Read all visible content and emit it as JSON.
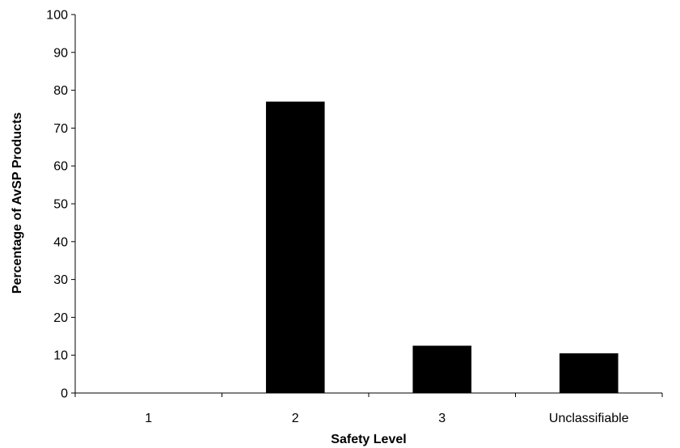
{
  "chart_data": {
    "type": "bar",
    "title": "",
    "xlabel": "Safety Level",
    "ylabel": "Percentage of AvSP Products",
    "categories": [
      "1",
      "2",
      "3",
      "Unclassifiable"
    ],
    "values": [
      0,
      77,
      12.5,
      10.5
    ],
    "ylim": [
      0,
      100
    ],
    "yticks": [
      0,
      10,
      20,
      30,
      40,
      50,
      60,
      70,
      80,
      90,
      100
    ],
    "grid": false,
    "legend": "none",
    "bar_color": "#000000"
  }
}
